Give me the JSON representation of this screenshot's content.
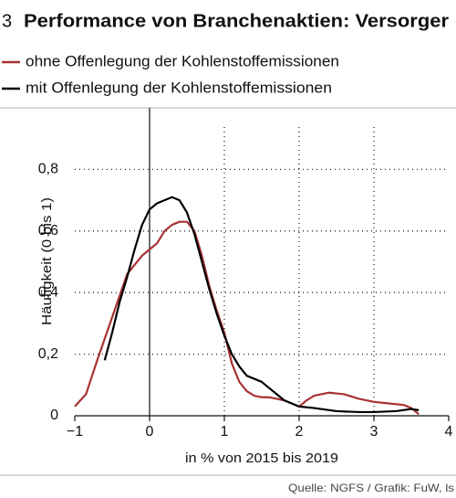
{
  "chart_data": {
    "type": "line",
    "number": "3",
    "title": "Performance von Branchenaktien: Versorger",
    "xlabel": "in % von 2015 bis 2019",
    "ylabel": "Häufigkeit (0 bis 1)",
    "source": "Quelle: NGFS / Grafik: FuW, ls",
    "xlim": [
      -1,
      4
    ],
    "ylim": [
      0,
      1
    ],
    "xticks": [
      {
        "value": -1,
        "label": "−1"
      },
      0,
      1,
      2,
      3,
      4
    ],
    "yticks": [
      0,
      {
        "value": 0.2,
        "label": "0,2"
      },
      {
        "value": 0.4,
        "label": "0,4"
      },
      {
        "value": 0.6,
        "label": "0,6"
      },
      {
        "value": 0.8,
        "label": "0,8"
      }
    ],
    "grid": true,
    "series": [
      {
        "name": "ohne Offenlegung der Kohlenstoffemissionen",
        "color": "#a83232",
        "x": [
          -1,
          -0.85,
          -0.7,
          -0.5,
          -0.3,
          -0.1,
          0,
          0.1,
          0.2,
          0.3,
          0.4,
          0.5,
          0.6,
          0.7,
          0.8,
          0.9,
          1.0,
          1.1,
          1.2,
          1.3,
          1.4,
          1.5,
          1.6,
          1.7,
          1.8,
          1.9,
          2.0,
          2.1,
          2.2,
          2.4,
          2.6,
          2.8,
          3.0,
          3.2,
          3.4,
          3.5,
          3.6
        ],
        "values": [
          0.03,
          0.07,
          0.18,
          0.32,
          0.46,
          0.52,
          0.54,
          0.56,
          0.6,
          0.62,
          0.63,
          0.63,
          0.6,
          0.52,
          0.42,
          0.34,
          0.27,
          0.17,
          0.11,
          0.08,
          0.065,
          0.06,
          0.06,
          0.055,
          0.05,
          0.04,
          0.03,
          0.05,
          0.065,
          0.075,
          0.07,
          0.055,
          0.045,
          0.04,
          0.035,
          0.025,
          0.005
        ]
      },
      {
        "name": "mit Offenlegung der Kohlenstoffemissionen",
        "color": "#000000",
        "x": [
          -0.6,
          -0.5,
          -0.4,
          -0.3,
          -0.2,
          -0.1,
          0,
          0.1,
          0.2,
          0.3,
          0.4,
          0.5,
          0.6,
          0.7,
          0.8,
          0.9,
          1.0,
          1.1,
          1.2,
          1.3,
          1.4,
          1.5,
          1.6,
          1.7,
          1.8,
          1.9,
          2.0,
          2.2,
          2.5,
          2.8,
          3.0,
          3.3,
          3.5,
          3.6
        ],
        "values": [
          0.18,
          0.27,
          0.37,
          0.45,
          0.54,
          0.62,
          0.67,
          0.69,
          0.7,
          0.71,
          0.7,
          0.66,
          0.59,
          0.5,
          0.41,
          0.33,
          0.26,
          0.2,
          0.16,
          0.13,
          0.12,
          0.11,
          0.09,
          0.07,
          0.05,
          0.04,
          0.03,
          0.025,
          0.015,
          0.012,
          0.012,
          0.015,
          0.022,
          0.018
        ]
      }
    ]
  }
}
